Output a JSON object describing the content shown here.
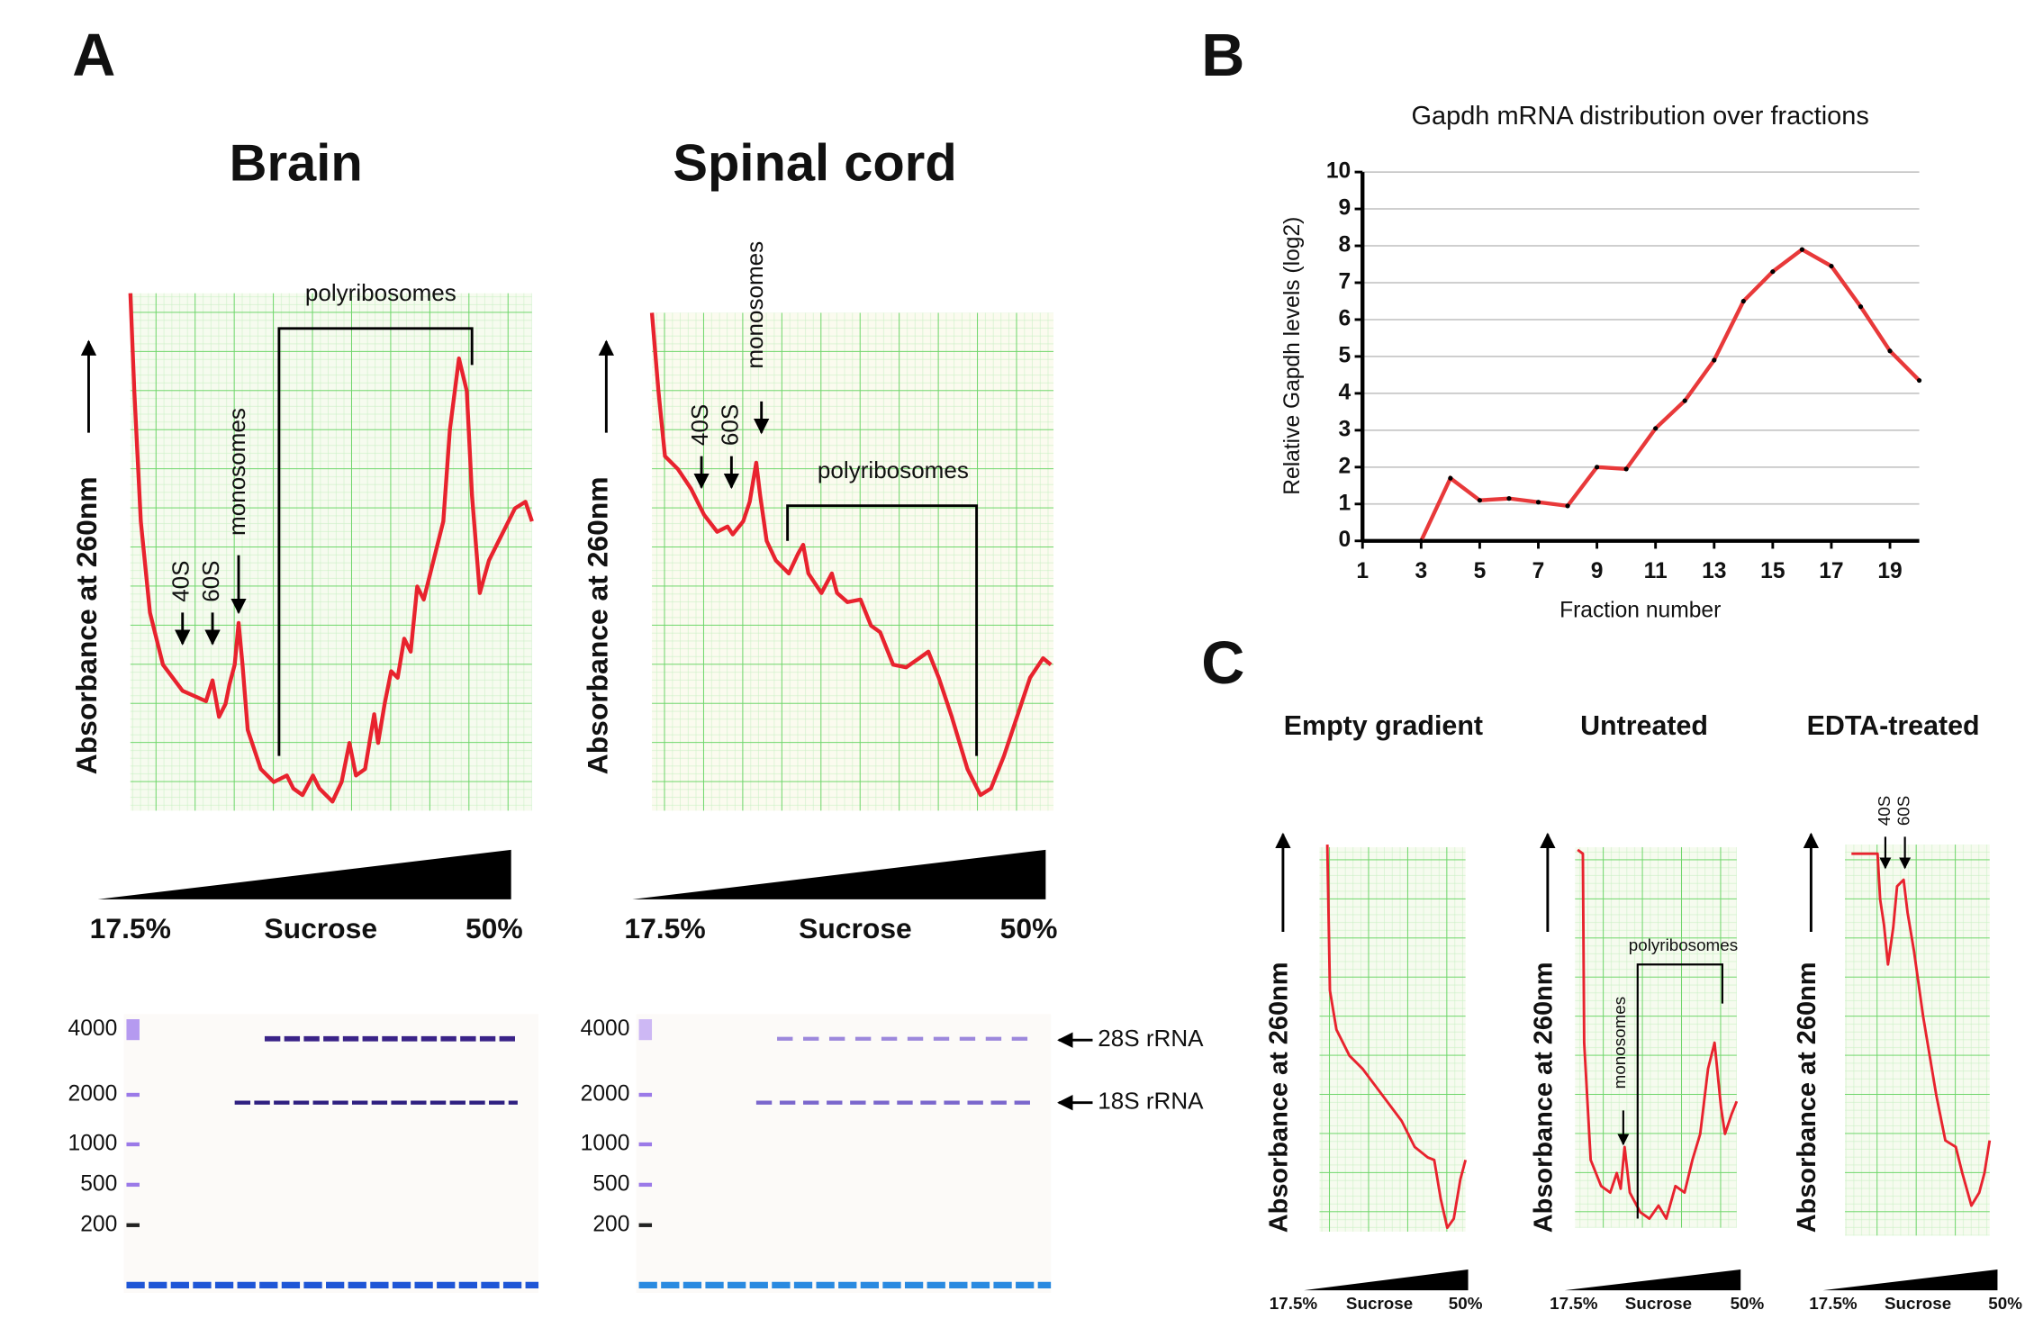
{
  "panel_a": {
    "label": "A",
    "brain": {
      "title": "Brain"
    },
    "spinal": {
      "title": "Spinal cord"
    },
    "y_axis_label": "Absorbance at 260nm",
    "peaks": {
      "s40": "40S",
      "s60": "60S",
      "mono": "monosomes",
      "poly": "polyribosomes"
    },
    "gradient": {
      "low": "17.5%",
      "name": "Sucrose",
      "high": "50%"
    },
    "ladder": [
      "4000",
      "2000",
      "1000",
      "500",
      "200"
    ],
    "bands": [
      "28S rRNA",
      "18S rRNA"
    ]
  },
  "panel_b": {
    "label": "B"
  },
  "chart_data": {
    "type": "line",
    "title": "Gapdh mRNA distribution over fractions",
    "xlabel": "Fraction number",
    "ylabel": "Relative Gapdh levels (log2)",
    "x": [
      3,
      4,
      5,
      6,
      7,
      8,
      9,
      10,
      11,
      12,
      13,
      14,
      15,
      16,
      17,
      18,
      19,
      20
    ],
    "values": [
      0,
      1.7,
      1.1,
      1.15,
      1.05,
      0.95,
      2.0,
      1.95,
      3.05,
      3.8,
      4.9,
      6.5,
      7.3,
      7.9,
      7.45,
      6.35,
      5.15,
      4.35
    ],
    "color": "#e8393a",
    "xlim": [
      1,
      20
    ],
    "ylim": [
      0,
      10
    ],
    "xticks": [
      1,
      3,
      5,
      7,
      9,
      11,
      13,
      15,
      17,
      19
    ],
    "yticks": [
      0,
      1,
      2,
      3,
      4,
      5,
      6,
      7,
      8,
      9,
      10
    ],
    "grid": true
  },
  "panel_c": {
    "label": "C",
    "titles": [
      "Empty gradient",
      "Untreated",
      "EDTA-treated"
    ],
    "y_axis_label": "Absorbance at 260nm",
    "gradient": {
      "low": "17.5%",
      "name": "Sucrose",
      "high": "50%"
    },
    "peaks": {
      "s40": "40S",
      "s60": "60S",
      "mono": "monosomes",
      "poly": "polyribosomes"
    }
  }
}
